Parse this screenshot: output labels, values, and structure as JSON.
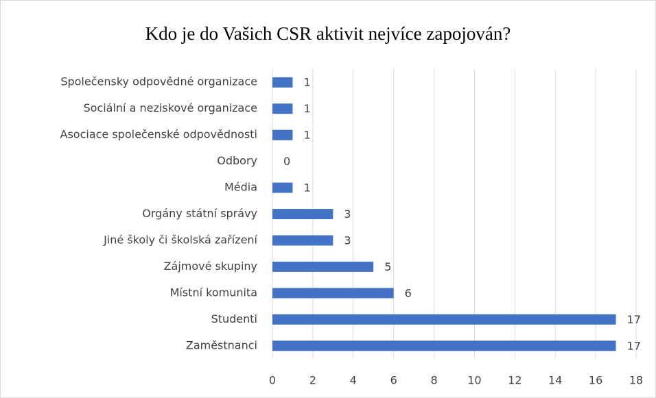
{
  "chart_data": {
    "type": "barh",
    "title": "Kdo je do Vašich CSR aktivit nejvíce zapojován?",
    "categories": [
      "Společensky odpovědné organizace",
      "Sociální a neziskové organizace",
      "Asociace společenské odpovědnosti",
      "Odbory",
      "Média",
      "Orgány státní správy",
      "Jiné školy či školská zařízení",
      "Zájmové skupiny",
      "Místní komunita",
      "Studenti",
      "Zaměstnanci"
    ],
    "values": [
      1,
      1,
      1,
      0,
      1,
      3,
      3,
      5,
      6,
      17,
      17
    ],
    "color": "#4472c4",
    "xlim": [
      0,
      18
    ],
    "xticks": [
      0,
      2,
      4,
      6,
      8,
      10,
      12,
      14,
      16,
      18
    ],
    "grid": true
  }
}
